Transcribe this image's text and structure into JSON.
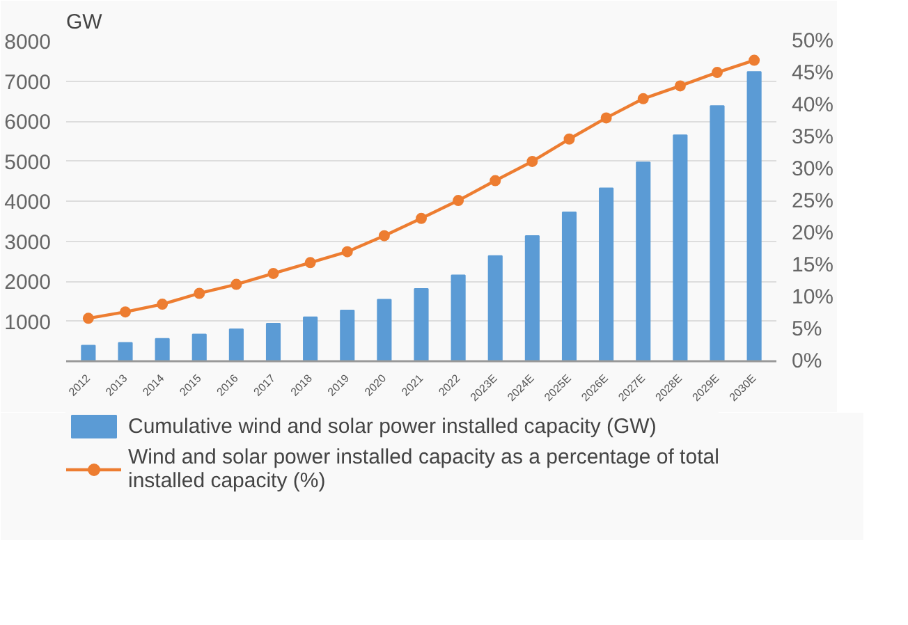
{
  "chart_data": {
    "type": "bar",
    "ylabel": "GW",
    "categories": [
      "2012",
      "2013",
      "2014",
      "2015",
      "2016",
      "2017",
      "2018",
      "2019",
      "2020",
      "2021",
      "2022",
      "2023E",
      "2024E",
      "2025E",
      "2026E",
      "2027E",
      "2028E",
      "2029E",
      "2030E"
    ],
    "series": [
      {
        "name": "Cumulative wind and solar power installed capacity (GW)",
        "color": "#5b9bd5",
        "values": [
          390,
          460,
          560,
          670,
          800,
          940,
          1100,
          1270,
          1540,
          1810,
          2150,
          2630,
          3130,
          3720,
          4320,
          4970,
          5650,
          6380,
          7230
        ]
      },
      {
        "name": "Wind and solar power installed capacity as a percentage of total installed capacity (%)",
        "type": "line",
        "axis": "y2",
        "color": "#ed7d31",
        "marker": "circle",
        "values": [
          6.7,
          7.7,
          8.9,
          10.6,
          12.0,
          13.7,
          15.4,
          17.1,
          19.6,
          22.3,
          25.1,
          28.2,
          31.2,
          34.7,
          38.0,
          41.0,
          43.0,
          45.1,
          47.0
        ]
      }
    ],
    "ylim": [
      0,
      8000
    ],
    "yticks": [
      1000,
      2000,
      3000,
      4000,
      5000,
      6000,
      7000,
      8000
    ],
    "y2lim": [
      0,
      50
    ],
    "y2ticks": [
      {
        "value": 0,
        "label": "0%"
      },
      {
        "value": 5,
        "label": "5%"
      },
      {
        "value": 10,
        "label": "10%"
      },
      {
        "value": 15,
        "label": "15%"
      },
      {
        "value": 20,
        "label": "20%"
      },
      {
        "value": 25,
        "label": "25%"
      },
      {
        "value": 30,
        "label": "30%"
      },
      {
        "value": 35,
        "label": "35%"
      },
      {
        "value": 40,
        "label": "40%"
      },
      {
        "value": 45,
        "label": "45%"
      },
      {
        "value": 50,
        "label": "50%"
      }
    ],
    "grid": "y",
    "legend": "bottom"
  }
}
